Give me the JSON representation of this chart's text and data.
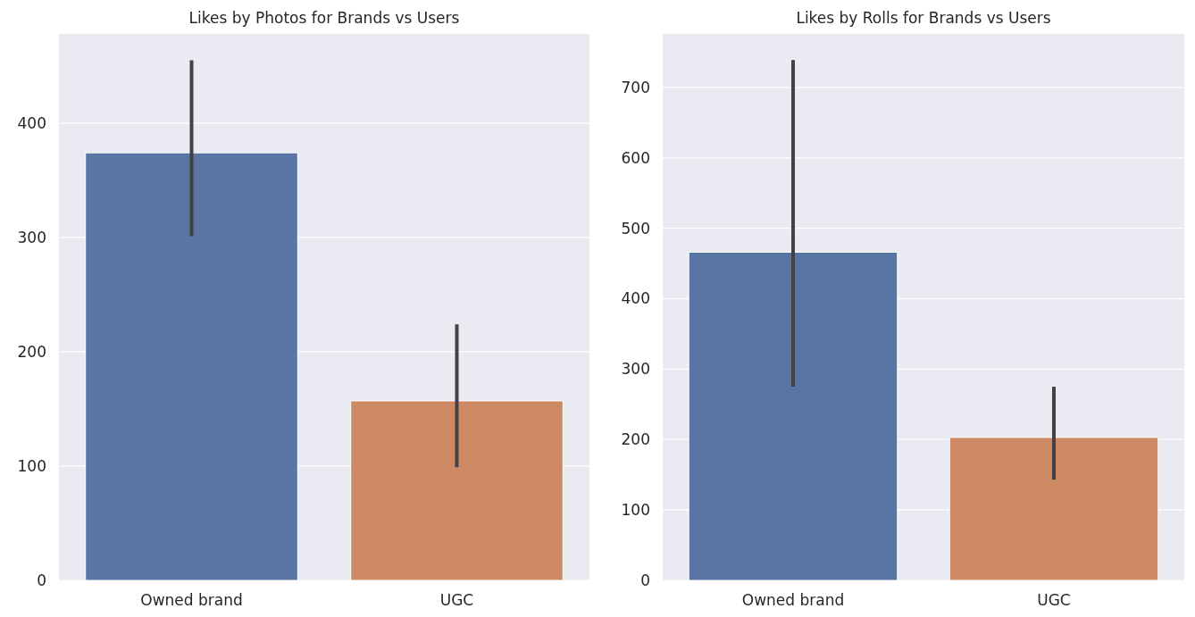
{
  "chart_data": [
    {
      "type": "bar",
      "title": "Likes by Photos for Brands vs Users",
      "categories": [
        "Owned brand",
        "UGC"
      ],
      "values": [
        374,
        157
      ],
      "colors": [
        "#5975a4",
        "#cc8963"
      ],
      "errors": [
        [
          301,
          455
        ],
        [
          99,
          224
        ]
      ],
      "ylim": [
        0,
        478
      ],
      "yticks": [
        0,
        100,
        200,
        300,
        400
      ],
      "grid": "y"
    },
    {
      "type": "bar",
      "title": "Likes by Rolls for Brands vs Users",
      "categories": [
        "Owned brand",
        "UGC"
      ],
      "values": [
        466,
        203
      ],
      "colors": [
        "#5975a4",
        "#cc8963"
      ],
      "errors": [
        [
          275,
          739
        ],
        [
          143,
          275
        ]
      ],
      "ylim": [
        0,
        776
      ],
      "yticks": [
        0,
        100,
        200,
        300,
        400,
        500,
        600,
        700
      ],
      "grid": "y"
    }
  ]
}
